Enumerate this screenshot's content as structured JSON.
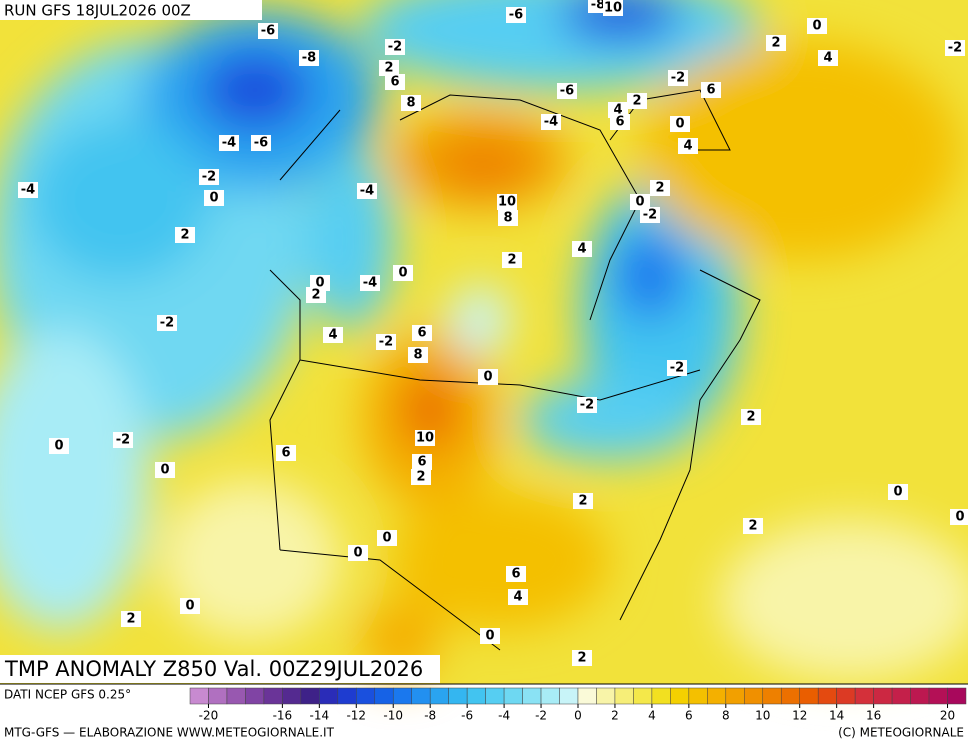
{
  "header": {
    "run": "RUN GFS 18JUL2026 00Z"
  },
  "map": {
    "title": "TMP ANOMALY Z850 Val. 00Z29JUL2026",
    "contour_labels": [
      -6,
      -6,
      -8,
      10,
      0,
      -2,
      -8,
      -2,
      2,
      6,
      2,
      4,
      -2,
      6,
      -6,
      2,
      4,
      6,
      8,
      -4,
      0,
      4,
      -4,
      -6,
      -4,
      -2,
      0,
      -4,
      2,
      0,
      -2,
      10,
      8,
      2,
      4,
      2,
      0,
      0,
      2,
      -4,
      -2,
      4,
      6,
      -2,
      8,
      0,
      -2,
      -2,
      2,
      10,
      -2,
      0,
      6,
      6,
      2,
      0,
      0,
      2,
      0,
      2,
      0,
      0,
      6,
      4,
      0,
      2,
      0,
      2
    ]
  },
  "colorbar": {
    "source": "DATI NCEP GFS 0.25°",
    "lim": [
      -21,
      21
    ],
    "ticks": [
      -20,
      -16,
      -14,
      -12,
      -10,
      -8,
      -6,
      -4,
      -2,
      0,
      2,
      4,
      6,
      8,
      10,
      12,
      14,
      16,
      20
    ],
    "colors": [
      "#c88ad0",
      "#b070c0",
      "#9858b0",
      "#8044a4",
      "#6a3498",
      "#542a90",
      "#3e2288",
      "#2a2cb8",
      "#1e3cd0",
      "#1a50de",
      "#1662e6",
      "#1a78ee",
      "#2290f0",
      "#2aa4f0",
      "#34b6f0",
      "#42c4f0",
      "#56cef2",
      "#6ed8f2",
      "#8ae2f4",
      "#a8ecf6",
      "#c8f4f8",
      "#fafad8",
      "#f8f4a8",
      "#f6ee78",
      "#f4e84a",
      "#f2e020",
      "#f4d000",
      "#f4c000",
      "#f4b000",
      "#f2a000",
      "#f09000",
      "#ee8000",
      "#ec7000",
      "#ea5e00",
      "#e44a10",
      "#dc3a24",
      "#d4303a",
      "#cc2842",
      "#c4204a",
      "#bc1850",
      "#b41056",
      "#a8085c"
    ]
  },
  "footer": {
    "left": "MTG-GFS — ELABORAZIONE WWW.METEOGIORNALE.IT",
    "right": "(C) METEOGIORNALE"
  }
}
